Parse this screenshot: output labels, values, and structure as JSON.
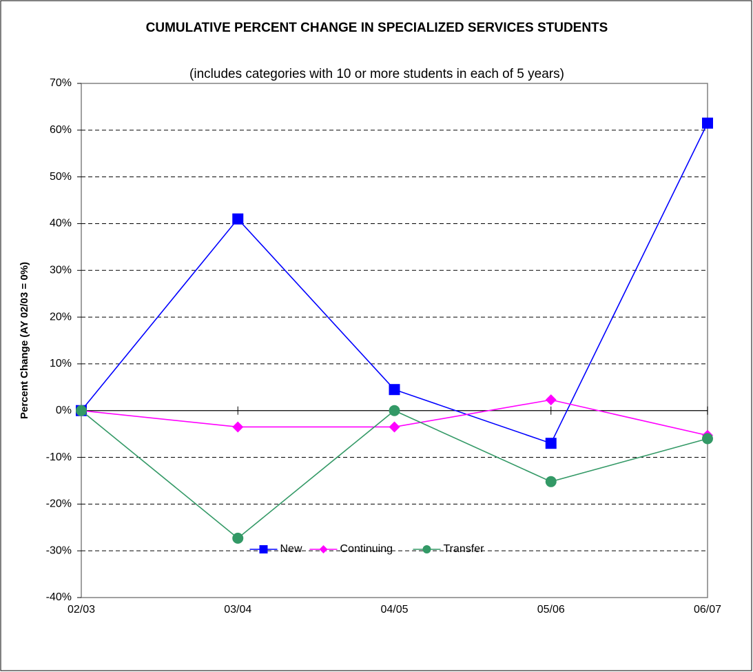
{
  "chart_data": {
    "type": "line",
    "title": "CUMULATIVE PERCENT CHANGE IN SPECIALIZED SERVICES STUDENTS",
    "subtitle": "(includes categories with 10 or more students in each of 5 years)",
    "y_label": "Percent Change (AY 02/03 = 0%)",
    "categories": [
      "02/03",
      "03/04",
      "04/05",
      "05/06",
      "06/07"
    ],
    "series": [
      {
        "name": "New",
        "color": "#0000ff",
        "marker": "square",
        "values": [
          0,
          41,
          4.5,
          -7,
          61.5
        ]
      },
      {
        "name": "Continuing",
        "color": "#ff00ff",
        "marker": "diamond",
        "values": [
          0,
          -3.5,
          -3.5,
          2.3,
          -5.3
        ]
      },
      {
        "name": "Transfer",
        "color": "#339966",
        "marker": "circle",
        "values": [
          0,
          -27.3,
          0,
          -15.2,
          -6
        ]
      }
    ],
    "ylim": [
      -40,
      70
    ],
    "yticks": [
      {
        "value": -40,
        "label": "-40%"
      },
      {
        "value": -30,
        "label": "-30%"
      },
      {
        "value": -20,
        "label": "-20%"
      },
      {
        "value": -10,
        "label": "-10%"
      },
      {
        "value": 0,
        "label": "0%"
      },
      {
        "value": 10,
        "label": "10%"
      },
      {
        "value": 20,
        "label": "20%"
      },
      {
        "value": 30,
        "label": "30%"
      },
      {
        "value": 40,
        "label": "40%"
      },
      {
        "value": 50,
        "label": "50%"
      },
      {
        "value": 60,
        "label": "60%"
      },
      {
        "value": 70,
        "label": "70%"
      }
    ],
    "grid": true,
    "legend": "bottom"
  }
}
